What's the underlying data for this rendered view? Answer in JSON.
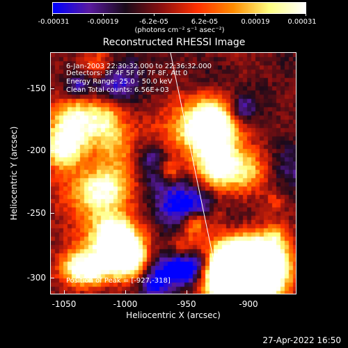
{
  "colorbar": {
    "tick_labels": [
      "-0.00031",
      "-0.00019",
      "-6.2e-05",
      "6.2e-05",
      "0.00019",
      "0.00031"
    ],
    "units_label": "(photons cm⁻² s⁻¹ asec⁻²)",
    "colormap": [
      "#0000ff",
      "#5a1aa0",
      "#1a0a1a",
      "#8a1010",
      "#ff3000",
      "#ff8c00",
      "#ffff80",
      "#ffffff"
    ]
  },
  "title": "Reconstructed RHESSI Image",
  "info": {
    "time_range": "6-Jan-2003 22:30:32.000 to 22:36:32.000",
    "detectors": "Detectors: 3F 4F 5F 6F 7F 8F, Att 0",
    "energy": "Energy Range: 25.0 - 50.0 keV",
    "clean": "Clean    Total counts: 6.56E+03",
    "peak": "Position of Peak = [-927,-318]"
  },
  "axes": {
    "xlabel": "Heliocentric X (arcsec)",
    "ylabel": "Heliocentric Y (arcsec)",
    "xticks": [
      "-1050",
      "-1000",
      "-950",
      "-900"
    ],
    "yticks": [
      "-150",
      "-200",
      "-250",
      "-300"
    ]
  },
  "footer": "27-Apr-2022 16:50"
}
